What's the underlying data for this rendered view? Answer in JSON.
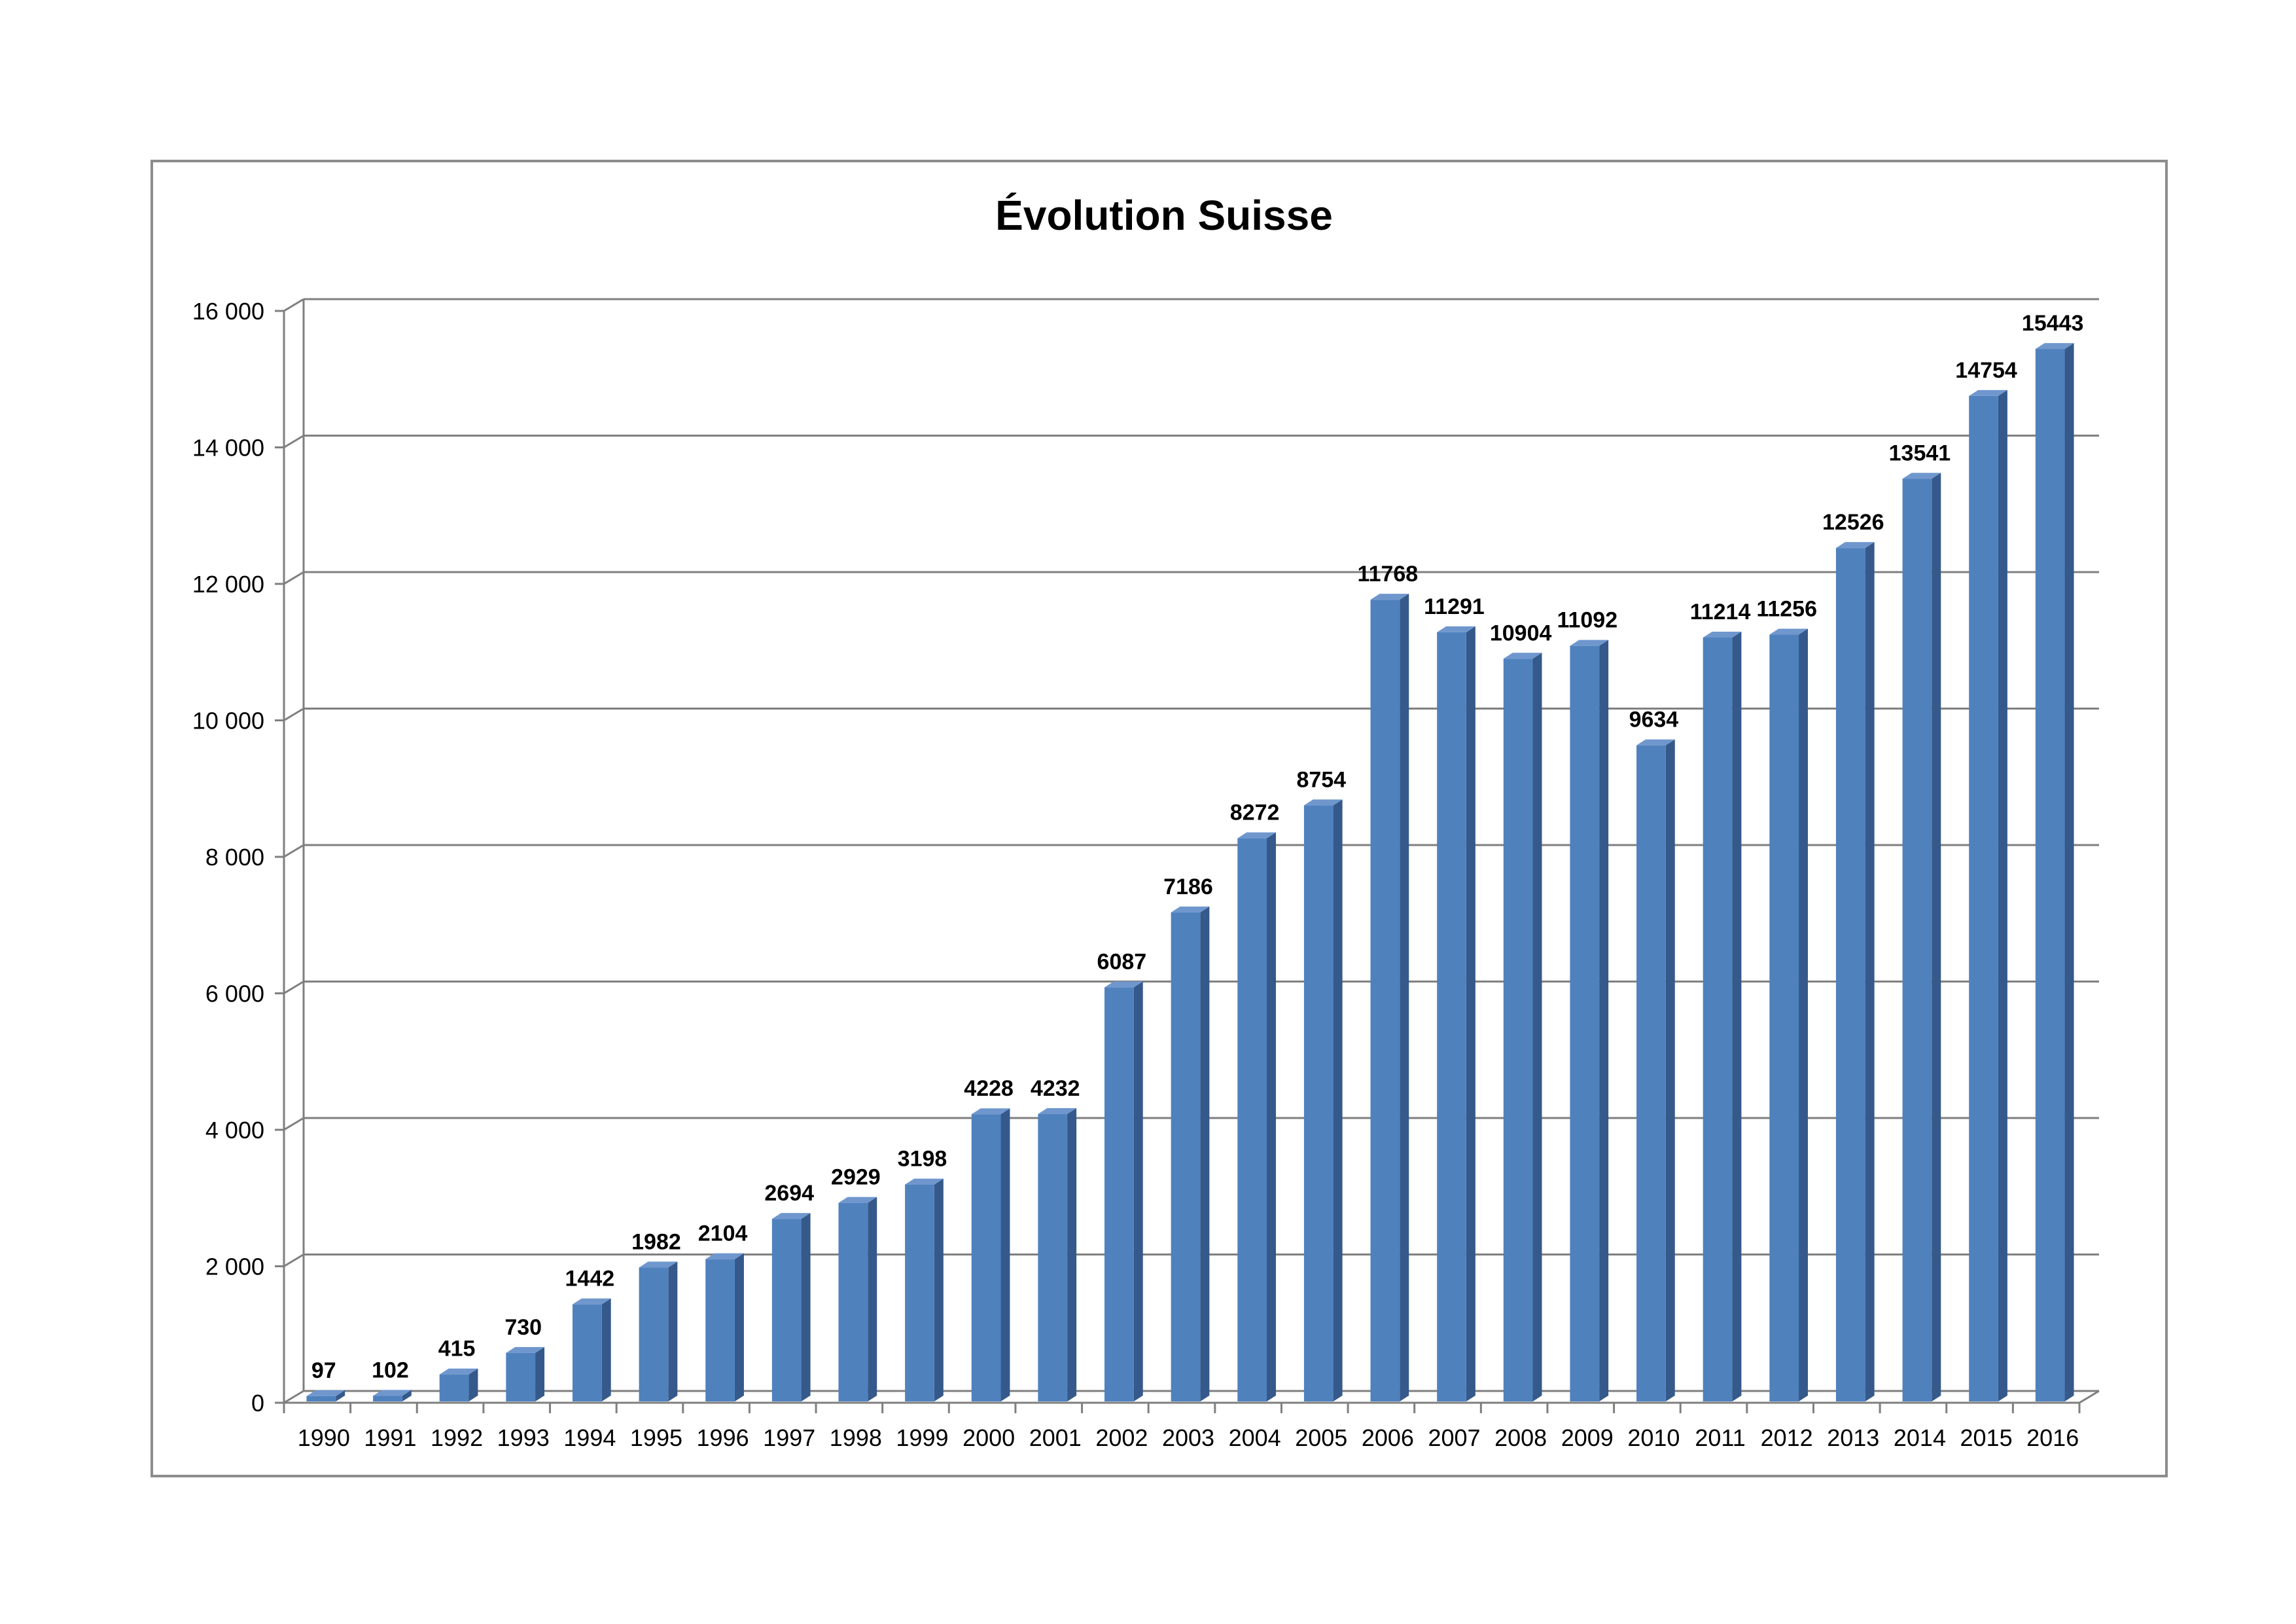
{
  "chart_data": {
    "type": "bar",
    "title": "Évolution Suisse",
    "xlabel": "",
    "ylabel": "",
    "categories": [
      "1990",
      "1991",
      "1992",
      "1993",
      "1994",
      "1995",
      "1996",
      "1997",
      "1998",
      "1999",
      "2000",
      "2001",
      "2002",
      "2003",
      "2004",
      "2005",
      "2006",
      "2007",
      "2008",
      "2009",
      "2010",
      "2011",
      "2012",
      "2013",
      "2014",
      "2015",
      "2016"
    ],
    "values": [
      97,
      102,
      415,
      730,
      1442,
      1982,
      2104,
      2694,
      2929,
      3198,
      4228,
      4232,
      6087,
      7186,
      8272,
      8754,
      11768,
      11291,
      10904,
      11092,
      9634,
      11214,
      11256,
      12526,
      13541,
      14754,
      15443
    ],
    "data_labels": [
      "97",
      "102",
      "415",
      "730",
      "1442",
      "1982",
      "2104",
      "2694",
      "2929",
      "3198",
      "4228",
      "4232",
      "6087",
      "7186",
      "8272",
      "8754",
      "11768",
      "11291",
      "10904",
      "11092",
      "9634",
      "11214",
      "11256",
      "12526",
      "13541",
      "14754",
      "15443"
    ],
    "ylim": [
      0,
      16000
    ],
    "yticks": [
      0,
      2000,
      4000,
      6000,
      8000,
      10000,
      12000,
      14000,
      16000
    ],
    "ytick_labels": [
      "0",
      "2 000",
      "4 000",
      "6 000",
      "8 000",
      "10 000",
      "12 000",
      "14 000",
      "16 000"
    ],
    "grid": true,
    "legend": "none",
    "style": "3d-column",
    "colors": {
      "bar_front": "#4f81bd",
      "bar_top": "#6f97cd",
      "bar_side": "#35598a",
      "grid": "#7f7f7f",
      "frame": "#8c8c8c",
      "text": "#000000"
    }
  }
}
